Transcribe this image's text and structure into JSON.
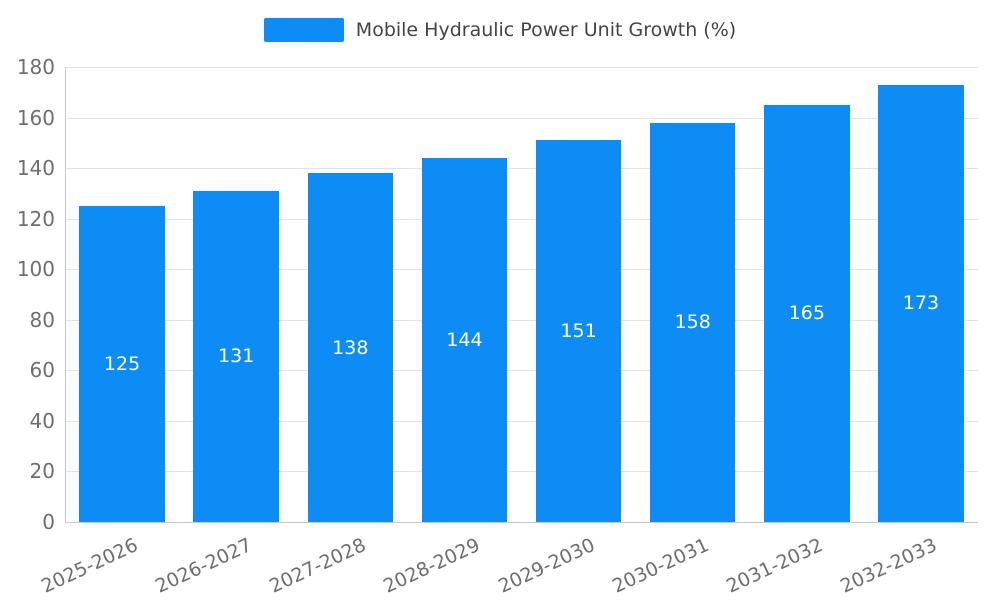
{
  "chart_data": {
    "type": "bar",
    "title": "Mobile Hydraulic Power Unit Growth (%)",
    "categories": [
      "2025-2026",
      "2026-2027",
      "2027-2028",
      "2028-2029",
      "2029-2030",
      "2030-2031",
      "2031-2032",
      "2032-2033"
    ],
    "values": [
      125,
      131,
      138,
      144,
      151,
      158,
      165,
      173
    ],
    "xlabel": "",
    "ylabel": "",
    "ylim": [
      0,
      180
    ],
    "ytick_step": 20,
    "grid": true,
    "legend_position": "top-center",
    "bar_color": "#0d8cf5",
    "bar_label_color": "#ffffff",
    "axis_text_color": "#6e6e6e",
    "title_color": "#444444"
  }
}
